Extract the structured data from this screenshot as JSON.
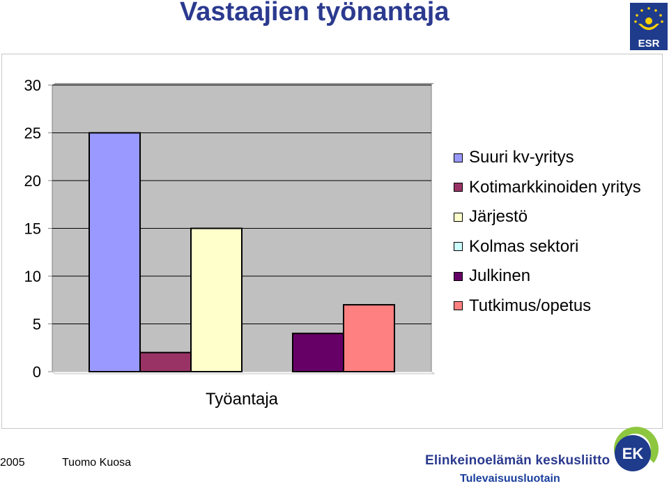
{
  "slide": {
    "title": "Vastaajien työnantaja",
    "footer_year": "2005",
    "footer_author": "Tuomo Kuosa",
    "footer_org": "Elinkeinoelämän keskusliitto",
    "footer_slogan": "Tulevaisuusluotain",
    "logos": {
      "esr": "ESR",
      "ek": "EK"
    }
  },
  "chart_data": {
    "type": "bar",
    "title": "",
    "xlabel": "Työantaja",
    "ylabel": "",
    "categories": [
      "Työantaja"
    ],
    "ylim": [
      0,
      30
    ],
    "yticks": [
      "0",
      "5",
      "10",
      "15",
      "20",
      "25",
      "30"
    ],
    "grid": true,
    "plot_background": "#c0c0c0",
    "legend_position": "right",
    "series": [
      {
        "name": "Suuri kv-yritys",
        "values": [
          25
        ],
        "color": "#9999ff"
      },
      {
        "name": "Kotimarkkinoiden yritys",
        "values": [
          2
        ],
        "color": "#993366"
      },
      {
        "name": "Järjestö",
        "values": [
          15
        ],
        "color": "#ffffcc"
      },
      {
        "name": "Kolmas sektori",
        "values": [
          0
        ],
        "color": "#ccffff"
      },
      {
        "name": "Julkinen",
        "values": [
          4
        ],
        "color": "#660066"
      },
      {
        "name": "Tutkimus/opetus",
        "values": [
          7
        ],
        "color": "#ff8080"
      }
    ]
  }
}
